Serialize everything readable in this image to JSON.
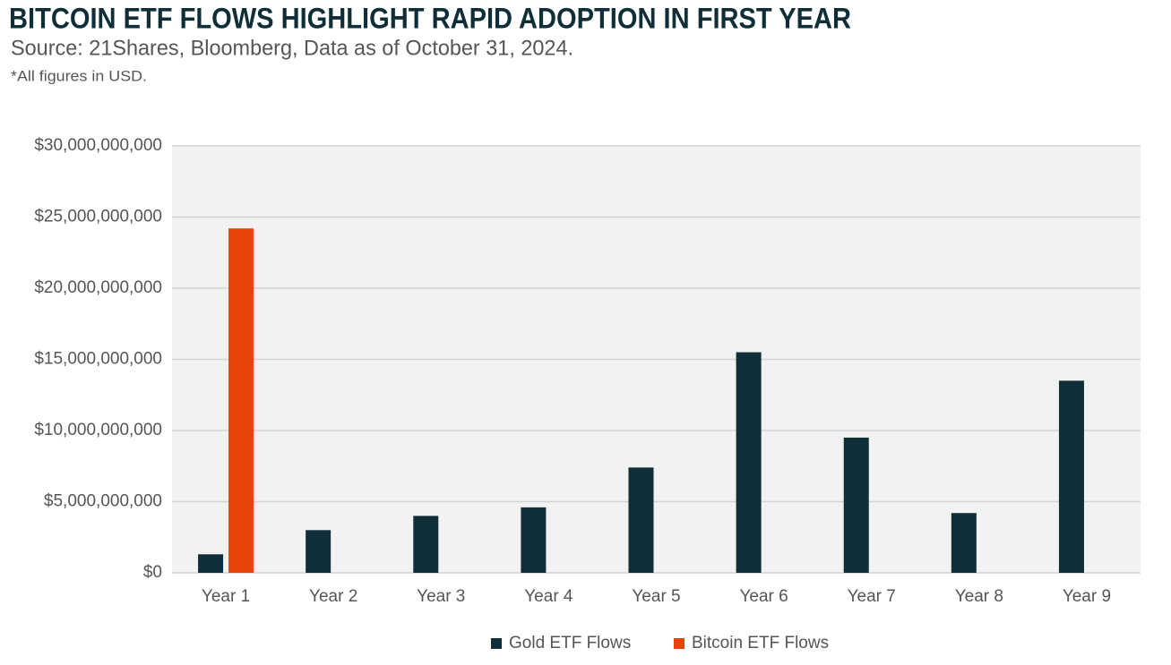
{
  "chart_data": {
    "type": "bar",
    "title": "BITCOIN ETF FLOWS HIGHLIGHT RAPID ADOPTION IN FIRST YEAR",
    "subtitle": "Source: 21Shares, Bloomberg, Data as of October 31, 2024.",
    "note": "*All figures in USD.",
    "categories": [
      "Year 1",
      "Year 2",
      "Year 3",
      "Year 4",
      "Year 5",
      "Year 6",
      "Year 7",
      "Year 8",
      "Year 9"
    ],
    "series": [
      {
        "name": "Gold ETF Flows",
        "color": "#0f2e38",
        "values": [
          1300000000,
          3000000000,
          4000000000,
          4600000000,
          7400000000,
          15500000000,
          9500000000,
          4200000000,
          13500000000
        ]
      },
      {
        "name": "Bitcoin ETF Flows",
        "color": "#e8440a",
        "values": [
          24200000000,
          null,
          null,
          null,
          null,
          null,
          null,
          null,
          null
        ]
      }
    ],
    "ylim": [
      0,
      30000000000
    ],
    "yticks": [
      {
        "value": 0,
        "label": "$0"
      },
      {
        "value": 5000000000,
        "label": "$5,000,000,000"
      },
      {
        "value": 10000000000,
        "label": "$10,000,000,000"
      },
      {
        "value": 15000000000,
        "label": "$15,000,000,000"
      },
      {
        "value": 20000000000,
        "label": "$20,000,000,000"
      },
      {
        "value": 25000000000,
        "label": "$25,000,000,000"
      },
      {
        "value": 30000000000,
        "label": "$30,000,000,000"
      }
    ],
    "grid": true
  }
}
